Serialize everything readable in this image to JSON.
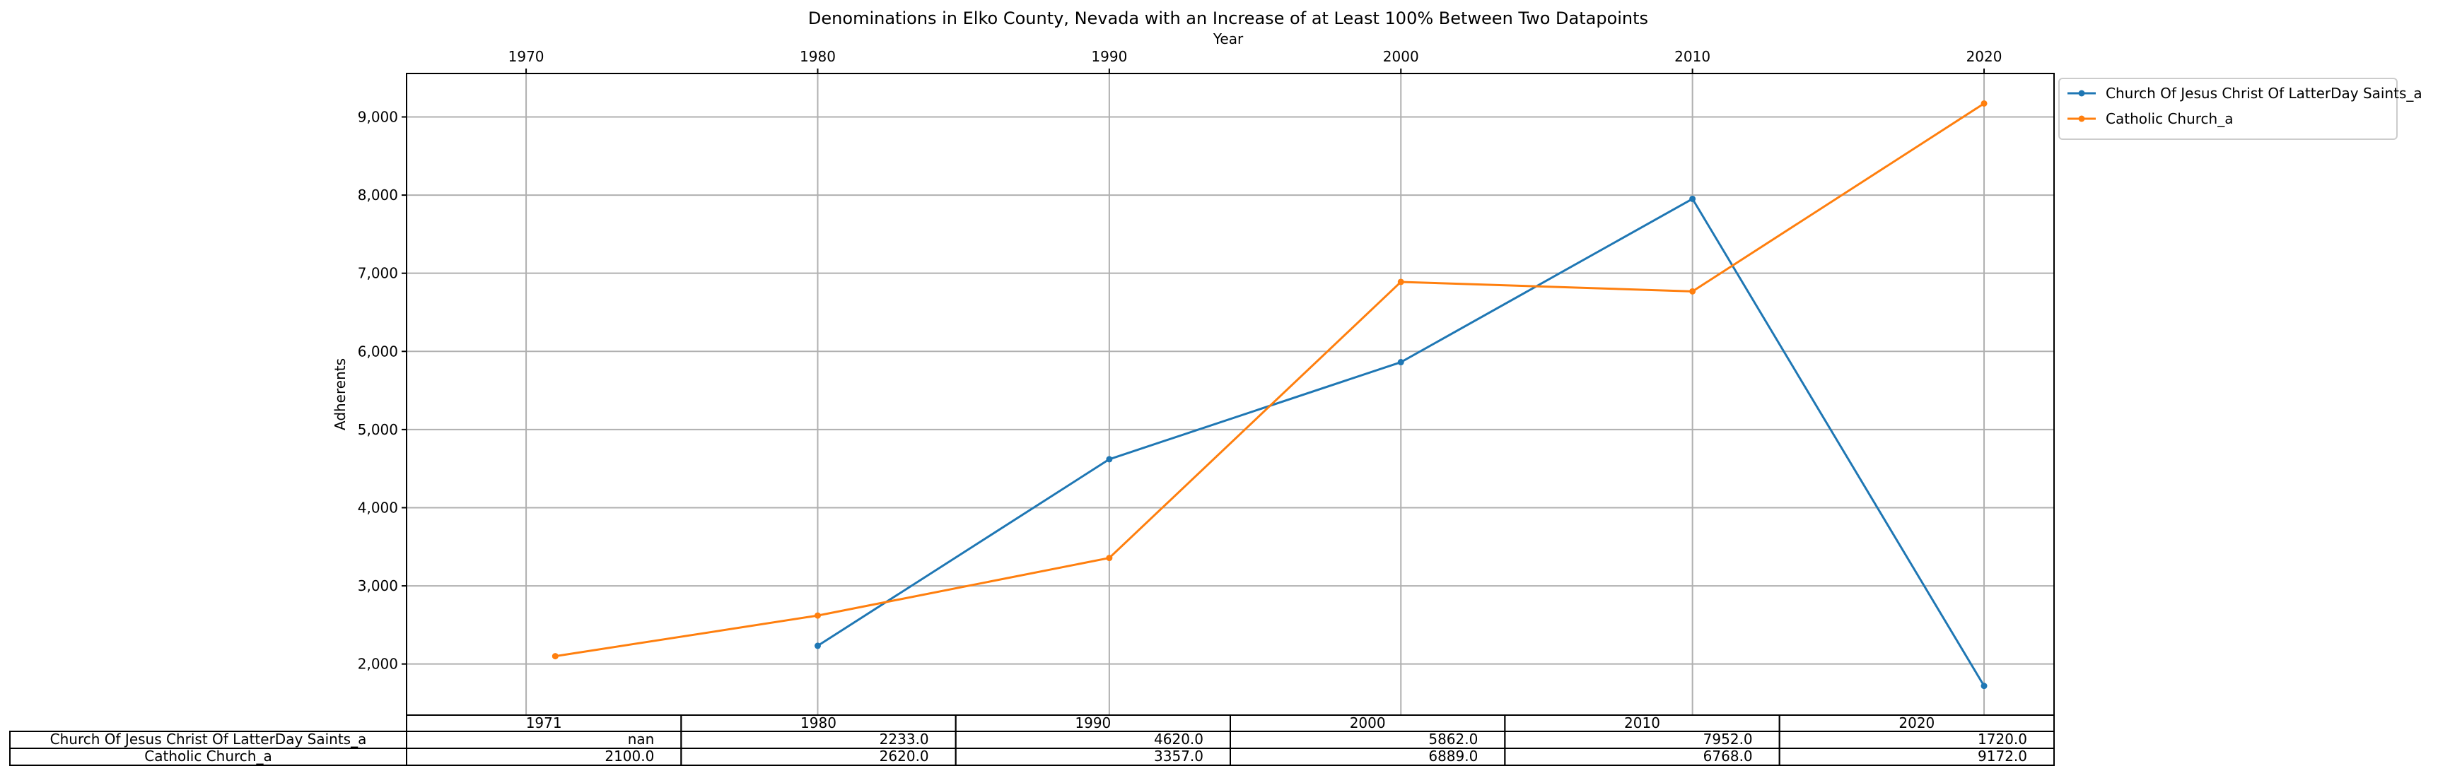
{
  "chart_data": {
    "type": "line",
    "title": "Denominations in Elko County, Nevada with an Increase of at Least 100% Between Two Datapoints",
    "xlabel": "Year",
    "ylabel": "Adherents",
    "x_axis_position": "top",
    "x_ticks": [
      1970,
      1980,
      1990,
      2000,
      2010,
      2020
    ],
    "x_range": [
      1965.9,
      2022.4
    ],
    "y_ticks": [
      "2,000",
      "3,000",
      "4,000",
      "5,000",
      "6,000",
      "7,000",
      "8,000",
      "9,000"
    ],
    "y_tick_values": [
      2000,
      3000,
      4000,
      5000,
      6000,
      7000,
      8000,
      9000
    ],
    "ylim": [
      1346,
      9556
    ],
    "grid": true,
    "legend_position": "outside top-right",
    "x": [
      1971,
      1980,
      1990,
      2000,
      2010,
      2020
    ],
    "series": [
      {
        "name": "Church Of Jesus Christ Of LatterDay Saints_a",
        "color": "#1f77b4",
        "values": [
          null,
          2233.0,
          4620.0,
          5862.0,
          7952.0,
          1720.0
        ]
      },
      {
        "name": "Catholic Church_a",
        "color": "#ff7f0e",
        "values": [
          2100.0,
          2620.0,
          3357.0,
          6889.0,
          6768.0,
          9172.0
        ]
      }
    ],
    "table": {
      "columns": [
        "1971",
        "1980",
        "1990",
        "2000",
        "2010",
        "2020"
      ],
      "rows": [
        {
          "label": "Church Of Jesus Christ Of LatterDay Saints_a",
          "cells": [
            "nan",
            "2233.0",
            "4620.0",
            "5862.0",
            "7952.0",
            "1720.0"
          ]
        },
        {
          "label": "Catholic Church_a",
          "cells": [
            "2100.0",
            "2620.0",
            "3357.0",
            "6889.0",
            "6768.0",
            "9172.0"
          ]
        }
      ]
    }
  }
}
